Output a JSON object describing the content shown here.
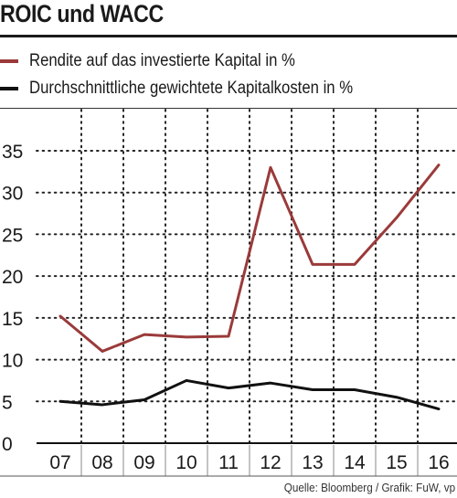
{
  "title": "ROIC und WACC",
  "source": "Quelle: Bloomberg / Grafik: FuW, vp",
  "colors": {
    "roic": "#9b3a3a",
    "wacc": "#111111",
    "grid": "#222222"
  },
  "chart_data": {
    "type": "line",
    "title": "ROIC und WACC",
    "categories": [
      "07",
      "08",
      "09",
      "10",
      "11",
      "12",
      "13",
      "14",
      "15",
      "16"
    ],
    "ylim": [
      0,
      35
    ],
    "yticks": [
      0,
      5,
      10,
      15,
      20,
      25,
      30,
      35
    ],
    "grid": true,
    "legend_position": "top",
    "series": [
      {
        "name": "Rendite auf das investierte Kapital in %",
        "color": "#9b3a3a",
        "values": [
          15.2,
          11.0,
          13.0,
          12.7,
          12.8,
          33.0,
          21.4,
          21.4,
          27.0,
          33.3
        ]
      },
      {
        "name": "Durchschnittliche gewichtete Kapitalkosten in %",
        "color": "#111111",
        "values": [
          5.0,
          4.6,
          5.2,
          7.5,
          6.6,
          7.2,
          6.4,
          6.4,
          5.5,
          4.1
        ]
      }
    ]
  }
}
